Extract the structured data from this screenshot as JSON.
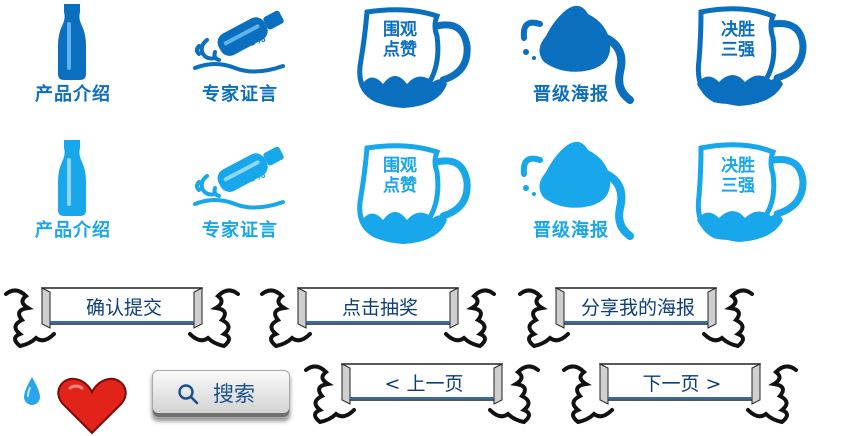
{
  "colors": {
    "dark_blue": "#0b6fc0",
    "light_blue": "#18a7ea",
    "heart_red": "#e2231a",
    "drop_blue": "#2aa6e8",
    "banner_text": "#0c3e7a"
  },
  "icons_row1": {
    "product": "产品介绍",
    "expert": "专家证言",
    "badge": "100%",
    "watch_a": "围观",
    "watch_b": "点赞",
    "poster": "晋级海报",
    "final_a": "决胜",
    "final_b": "三强"
  },
  "icons_row2": {
    "product": "产品介绍",
    "expert": "专家证言",
    "badge": "100%",
    "watch_a": "围观",
    "watch_b": "点赞",
    "poster": "晋级海报",
    "final_a": "决胜",
    "final_b": "三强"
  },
  "buttons": {
    "confirm": "确认提交",
    "draw": "点击抽奖",
    "share": "分享我的海报",
    "prev": "< 上一页",
    "next": "下一页 >",
    "search": "搜索"
  },
  "icon_names": [
    "bottle-icon",
    "pouring-bottle-icon",
    "pitcher-icon",
    "teapot-splash-icon",
    "water-drop-icon",
    "heart-icon",
    "search-icon"
  ]
}
